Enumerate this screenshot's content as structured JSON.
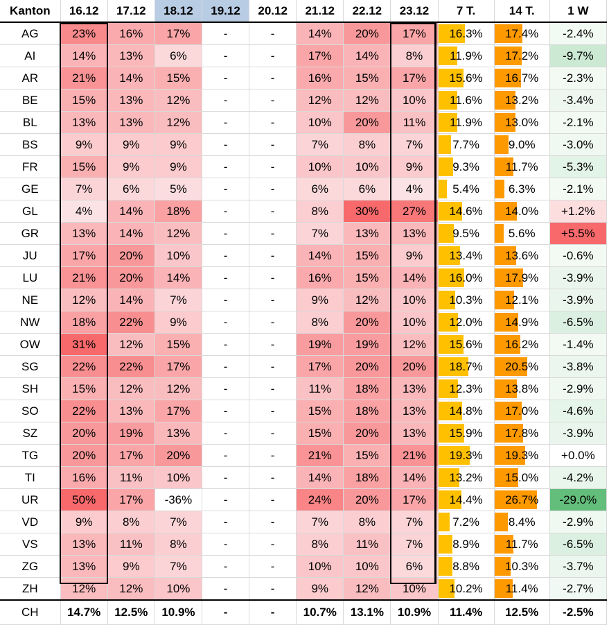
{
  "headers": [
    "Kanton",
    "16.12",
    "17.12",
    "18.12",
    "19.12",
    "20.12",
    "21.12",
    "22.12",
    "23.12",
    "7 T.",
    "14 T.",
    "1 W"
  ],
  "holiday_cols": [
    3,
    4
  ],
  "colors": {
    "heat_hi": "#f8696b",
    "heat_lo": "#fcfcff",
    "bar7": "#ffc000",
    "bar14": "#ff9900",
    "wk_pos": "#f8696b",
    "wk_neg": "#63be7b",
    "holiday": "#b8cce4"
  },
  "rows": [
    {
      "k": "AG",
      "d": [
        "23%",
        "16%",
        "17%",
        "-",
        "-",
        "14%",
        "20%",
        "17%"
      ],
      "t7": "16.3%",
      "t14": "17.4%",
      "w": "-2.4%"
    },
    {
      "k": "AI",
      "d": [
        "14%",
        "13%",
        "6%",
        "-",
        "-",
        "17%",
        "14%",
        "8%"
      ],
      "t7": "11.9%",
      "t14": "17.2%",
      "w": "-9.7%"
    },
    {
      "k": "AR",
      "d": [
        "21%",
        "14%",
        "15%",
        "-",
        "-",
        "16%",
        "15%",
        "17%"
      ],
      "t7": "15.6%",
      "t14": "16.7%",
      "w": "-2.3%"
    },
    {
      "k": "BE",
      "d": [
        "15%",
        "13%",
        "12%",
        "-",
        "-",
        "12%",
        "12%",
        "10%"
      ],
      "t7": "11.6%",
      "t14": "13.2%",
      "w": "-3.4%"
    },
    {
      "k": "BL",
      "d": [
        "13%",
        "13%",
        "12%",
        "-",
        "-",
        "10%",
        "20%",
        "11%"
      ],
      "t7": "11.9%",
      "t14": "13.0%",
      "w": "-2.1%"
    },
    {
      "k": "BS",
      "d": [
        "9%",
        "9%",
        "9%",
        "-",
        "-",
        "7%",
        "8%",
        "7%"
      ],
      "t7": "7.7%",
      "t14": "9.0%",
      "w": "-3.0%"
    },
    {
      "k": "FR",
      "d": [
        "15%",
        "9%",
        "9%",
        "-",
        "-",
        "10%",
        "10%",
        "9%"
      ],
      "t7": "9.3%",
      "t14": "11.7%",
      "w": "-5.3%"
    },
    {
      "k": "GE",
      "d": [
        "7%",
        "6%",
        "5%",
        "-",
        "-",
        "6%",
        "6%",
        "4%"
      ],
      "t7": "5.4%",
      "t14": "6.3%",
      "w": "-2.1%"
    },
    {
      "k": "GL",
      "d": [
        "4%",
        "14%",
        "18%",
        "-",
        "-",
        "8%",
        "30%",
        "27%"
      ],
      "t7": "14.6%",
      "t14": "14.0%",
      "w": "+1.2%"
    },
    {
      "k": "GR",
      "d": [
        "13%",
        "14%",
        "12%",
        "-",
        "-",
        "7%",
        "13%",
        "13%"
      ],
      "t7": "9.5%",
      "t14": "5.6%",
      "w": "+5.5%"
    },
    {
      "k": "JU",
      "d": [
        "17%",
        "20%",
        "10%",
        "-",
        "-",
        "14%",
        "15%",
        "9%"
      ],
      "t7": "13.4%",
      "t14": "13.6%",
      "w": "-0.6%"
    },
    {
      "k": "LU",
      "d": [
        "21%",
        "20%",
        "14%",
        "-",
        "-",
        "16%",
        "15%",
        "14%"
      ],
      "t7": "16.0%",
      "t14": "17.9%",
      "w": "-3.9%"
    },
    {
      "k": "NE",
      "d": [
        "12%",
        "14%",
        "7%",
        "-",
        "-",
        "9%",
        "12%",
        "10%"
      ],
      "t7": "10.3%",
      "t14": "12.1%",
      "w": "-3.9%"
    },
    {
      "k": "NW",
      "d": [
        "18%",
        "22%",
        "9%",
        "-",
        "-",
        "8%",
        "20%",
        "10%"
      ],
      "t7": "12.0%",
      "t14": "14.9%",
      "w": "-6.5%"
    },
    {
      "k": "OW",
      "d": [
        "31%",
        "12%",
        "15%",
        "-",
        "-",
        "19%",
        "19%",
        "12%"
      ],
      "t7": "15.6%",
      "t14": "16.2%",
      "w": "-1.4%"
    },
    {
      "k": "SG",
      "d": [
        "22%",
        "22%",
        "17%",
        "-",
        "-",
        "17%",
        "20%",
        "20%"
      ],
      "t7": "18.7%",
      "t14": "20.5%",
      "w": "-3.8%"
    },
    {
      "k": "SH",
      "d": [
        "15%",
        "12%",
        "12%",
        "-",
        "-",
        "11%",
        "18%",
        "13%"
      ],
      "t7": "12.3%",
      "t14": "13.8%",
      "w": "-2.9%"
    },
    {
      "k": "SO",
      "d": [
        "22%",
        "13%",
        "17%",
        "-",
        "-",
        "15%",
        "18%",
        "13%"
      ],
      "t7": "14.8%",
      "t14": "17.0%",
      "w": "-4.6%"
    },
    {
      "k": "SZ",
      "d": [
        "20%",
        "19%",
        "13%",
        "-",
        "-",
        "15%",
        "20%",
        "13%"
      ],
      "t7": "15.9%",
      "t14": "17.8%",
      "w": "-3.9%"
    },
    {
      "k": "TG",
      "d": [
        "20%",
        "17%",
        "20%",
        "-",
        "-",
        "21%",
        "15%",
        "21%"
      ],
      "t7": "19.3%",
      "t14": "19.3%",
      "w": "+0.0%"
    },
    {
      "k": "TI",
      "d": [
        "16%",
        "11%",
        "10%",
        "-",
        "-",
        "14%",
        "18%",
        "14%"
      ],
      "t7": "13.2%",
      "t14": "15.0%",
      "w": "-4.2%"
    },
    {
      "k": "UR",
      "d": [
        "50%",
        "17%",
        "-36%",
        "-",
        "-",
        "24%",
        "20%",
        "17%"
      ],
      "t7": "14.4%",
      "t14": "26.7%",
      "w": "-29.0%"
    },
    {
      "k": "VD",
      "d": [
        "9%",
        "8%",
        "7%",
        "-",
        "-",
        "7%",
        "8%",
        "7%"
      ],
      "t7": "7.2%",
      "t14": "8.4%",
      "w": "-2.9%"
    },
    {
      "k": "VS",
      "d": [
        "13%",
        "11%",
        "8%",
        "-",
        "-",
        "8%",
        "11%",
        "7%"
      ],
      "t7": "8.9%",
      "t14": "11.7%",
      "w": "-6.5%"
    },
    {
      "k": "ZG",
      "d": [
        "13%",
        "9%",
        "7%",
        "-",
        "-",
        "10%",
        "10%",
        "6%"
      ],
      "t7": "8.8%",
      "t14": "10.3%",
      "w": "-3.7%"
    },
    {
      "k": "ZH",
      "d": [
        "12%",
        "12%",
        "10%",
        "-",
        "-",
        "9%",
        "12%",
        "10%"
      ],
      "t7": "10.2%",
      "t14": "11.4%",
      "w": "-2.7%"
    }
  ],
  "total": {
    "k": "CH",
    "d": [
      "14.7%",
      "12.5%",
      "10.9%",
      "-",
      "-",
      "10.7%",
      "13.1%",
      "10.9%"
    ],
    "t7": "11.4%",
    "t14": "12.5%",
    "w": "-2.5%"
  }
}
